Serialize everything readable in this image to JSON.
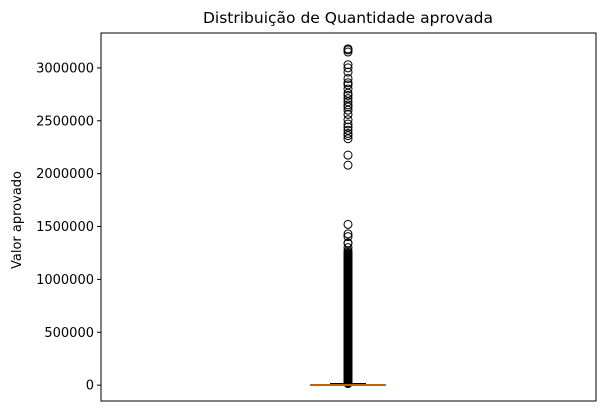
{
  "chart_data": {
    "type": "boxplot",
    "title": "Distribuição de Quantidade aprovada",
    "xlabel": "",
    "ylabel": "Valor aprovado",
    "ylim": [
      -150000,
      3330000
    ],
    "yticks": [
      0,
      500000,
      1000000,
      1500000,
      2000000,
      2500000,
      3000000
    ],
    "ytick_labels": [
      "0",
      "500000",
      "1000000",
      "1500000",
      "2000000",
      "2500000",
      "3000000"
    ],
    "xticks_visible": false,
    "grid": false,
    "box": {
      "whisker_low": 0,
      "q1": 0,
      "median": 1000,
      "q3": 6000,
      "whisker_high": 15000
    },
    "outliers_dense_range": [
      15000,
      1250000
    ],
    "outliers": [
      1255000,
      1270000,
      1300000,
      1340000,
      1345000,
      1405000,
      1430000,
      1520000,
      2080000,
      2175000,
      2330000,
      2360000,
      2380000,
      2410000,
      2440000,
      2470000,
      2510000,
      2560000,
      2600000,
      2630000,
      2650000,
      2680000,
      2710000,
      2740000,
      2760000,
      2800000,
      2840000,
      2860000,
      2900000,
      2960000,
      3000000,
      3030000,
      3150000,
      3170000,
      3180000
    ],
    "colors": {
      "box_edge": "#000000",
      "median": "#ff7f0e",
      "outlier_edge": "#000000",
      "axes": "#000000",
      "background": "#ffffff"
    }
  }
}
